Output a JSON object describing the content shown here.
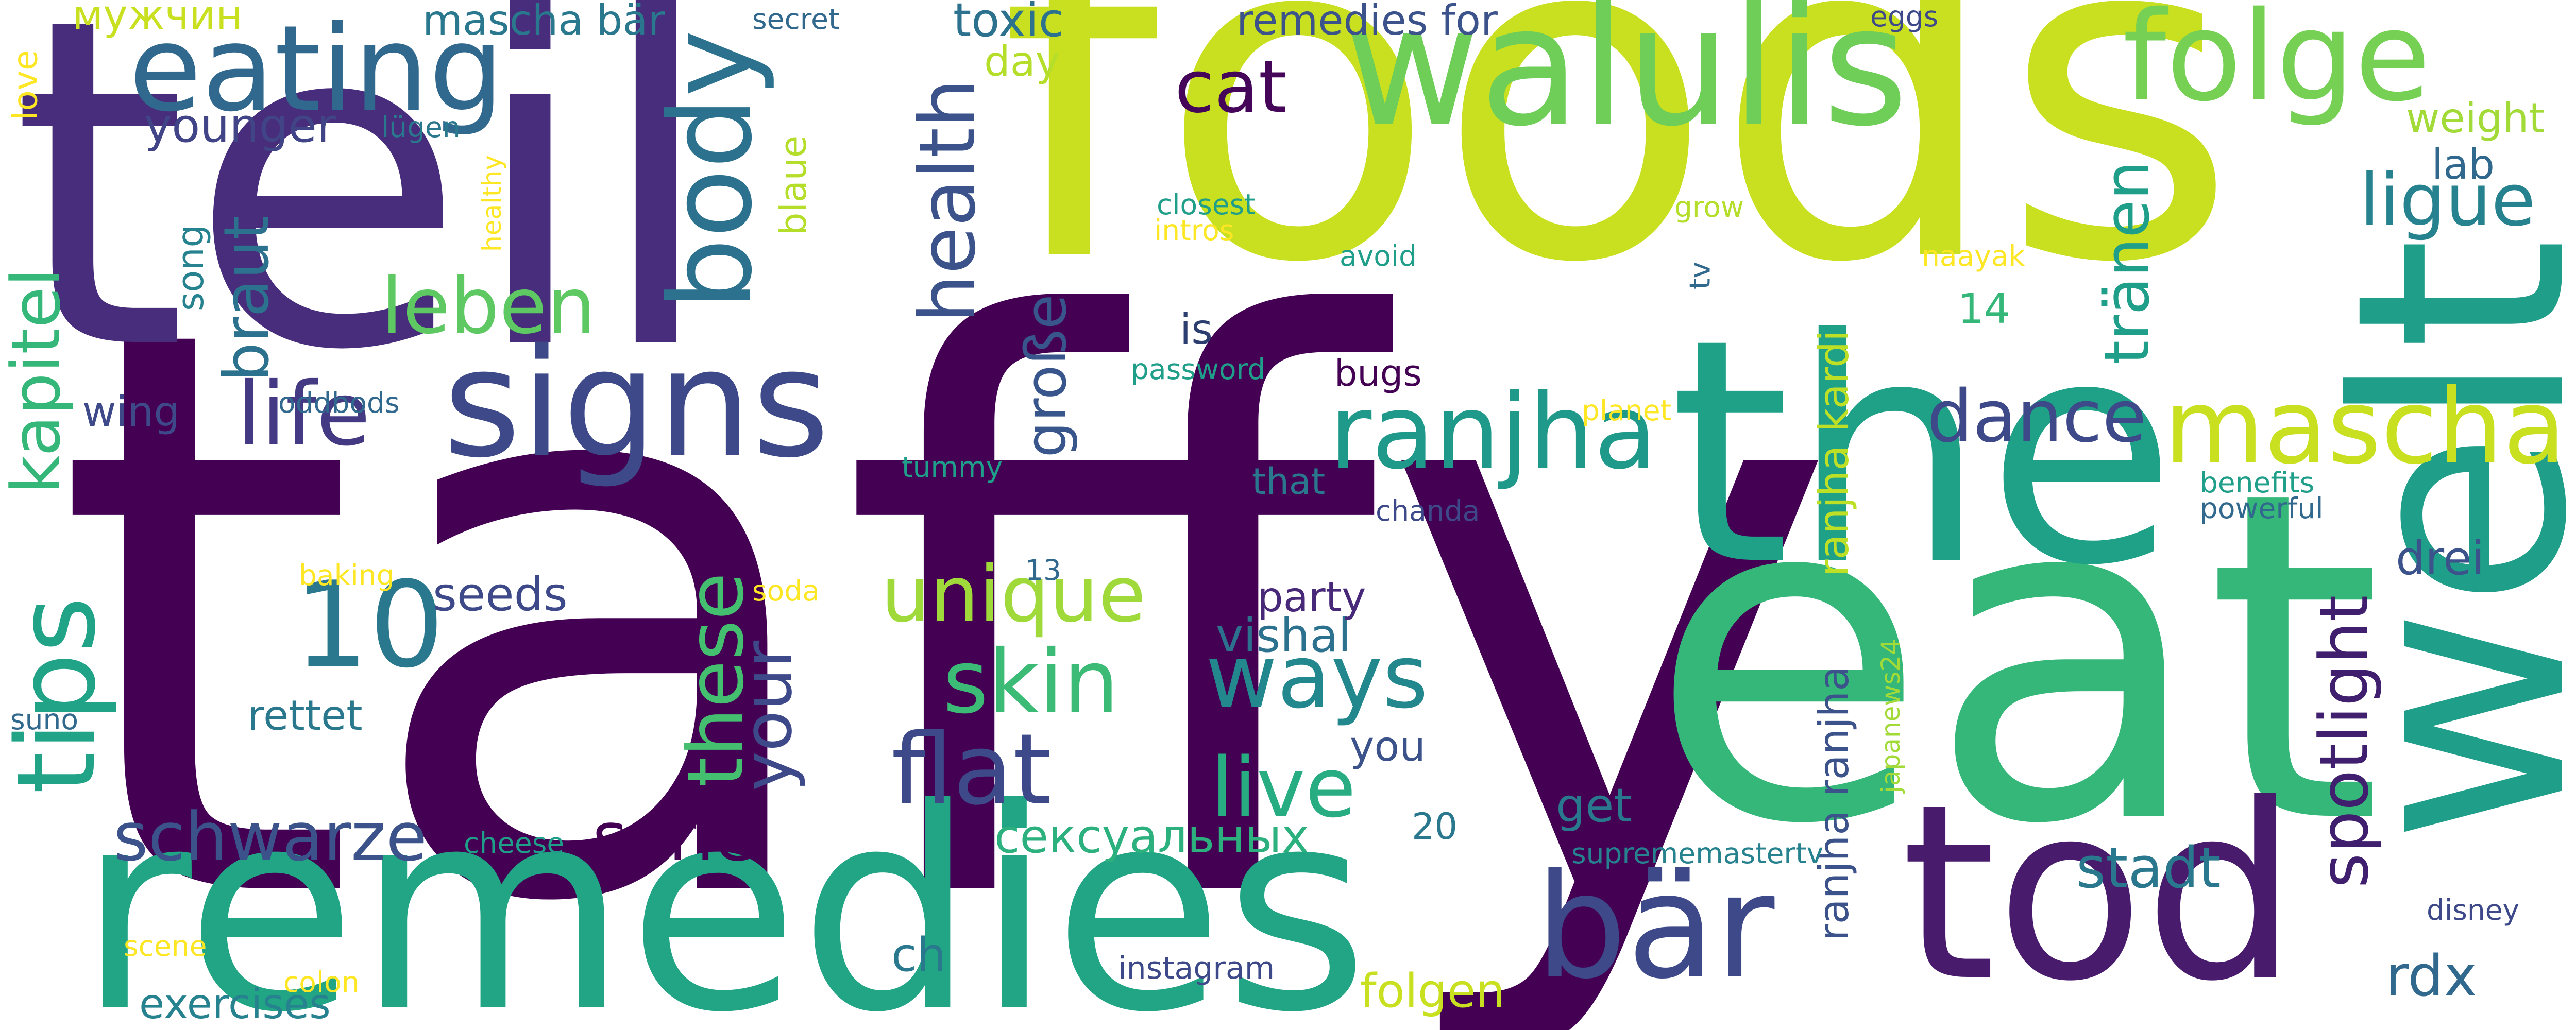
{
  "colors": {
    "background": "#ffffff",
    "palette": [
      "#440154",
      "#482878",
      "#3e4989",
      "#31688e",
      "#26828e",
      "#1f9e89",
      "#35b779",
      "#6ece58",
      "#b5de2b",
      "#c8e020",
      "#fde725"
    ]
  },
  "words": [
    {
      "text": "taffy",
      "color": "#440154"
    },
    {
      "text": "foods",
      "color": "#c8e020"
    },
    {
      "text": "teil",
      "color": "#472d7b"
    },
    {
      "text": "eat",
      "color": "#35b779"
    },
    {
      "text": "remedies",
      "color": "#21a585"
    },
    {
      "text": "the",
      "color": "#1fa188"
    },
    {
      "text": "welt",
      "color": "#1f9e89"
    },
    {
      "text": "tod",
      "color": "#481b6d"
    },
    {
      "text": "walulis",
      "color": "#6ece58"
    },
    {
      "text": "eating",
      "color": "#31688e"
    },
    {
      "text": "folge",
      "color": "#75d054"
    },
    {
      "text": "body",
      "color": "#2c728e"
    },
    {
      "text": "signs",
      "color": "#3e4989"
    },
    {
      "text": "health",
      "color": "#3b528b"
    },
    {
      "text": "bär",
      "color": "#3e4989"
    },
    {
      "text": "tips",
      "color": "#20a386"
    },
    {
      "text": "10",
      "color": "#2a788e"
    },
    {
      "text": "mascha",
      "color": "#c8e020"
    },
    {
      "text": "ranjha",
      "color": "#1f9a8a"
    },
    {
      "text": "flat",
      "color": "#3e4989"
    },
    {
      "text": "ways",
      "color": "#23888e"
    },
    {
      "text": "skin",
      "color": "#3bbb75"
    },
    {
      "text": "unique",
      "color": "#9fda3a"
    },
    {
      "text": "life",
      "color": "#443983"
    },
    {
      "text": "leben",
      "color": "#5ec962"
    },
    {
      "text": "kapitel",
      "color": "#35b779"
    },
    {
      "text": "these",
      "color": "#44bf70"
    },
    {
      "text": "live",
      "color": "#27ad81"
    },
    {
      "text": "spotlight",
      "color": "#3f1f6e"
    },
    {
      "text": "dance",
      "color": "#3e4989"
    },
    {
      "text": "schwarze",
      "color": "#3b528b"
    },
    {
      "text": "serie",
      "color": "#440154"
    },
    {
      "text": "your",
      "color": "#3e4989"
    },
    {
      "text": "ligue",
      "color": "#26828e"
    },
    {
      "text": "cat",
      "color": "#450559"
    },
    {
      "text": "braut",
      "color": "#2c728e"
    },
    {
      "text": "große",
      "color": "#39568c"
    },
    {
      "text": "tränen",
      "color": "#1f9e89"
    },
    {
      "text": "сексуальных",
      "color": "#2cb17e"
    },
    {
      "text": "stadt",
      "color": "#2a788e"
    },
    {
      "text": "ranjha kardi",
      "color": "#bddf26"
    },
    {
      "text": "ranjha ranjha",
      "color": "#3b528b"
    },
    {
      "text": "vishal",
      "color": "#2c728e"
    },
    {
      "text": "rdx",
      "color": "#31688e"
    },
    {
      "text": "folgen",
      "color": "#c8e020"
    },
    {
      "text": "drei",
      "color": "#3b528b"
    },
    {
      "text": "toxic",
      "color": "#2c728e"
    },
    {
      "text": "younger",
      "color": "#414487"
    },
    {
      "text": "mascha bär",
      "color": "#2a788e"
    },
    {
      "text": "remedies for",
      "color": "#3b528b"
    },
    {
      "text": "get",
      "color": "#2a788e"
    },
    {
      "text": "ch",
      "color": "#2a788e"
    },
    {
      "text": "party",
      "color": "#482878"
    },
    {
      "text": "seeds",
      "color": "#3e4989"
    },
    {
      "text": "rettet",
      "color": "#2a788e"
    },
    {
      "text": "мужчин",
      "color": "#c8e020"
    },
    {
      "text": "weight",
      "color": "#a2da37"
    },
    {
      "text": "lab",
      "color": "#31688e"
    },
    {
      "text": "day",
      "color": "#b5de2b"
    },
    {
      "text": "14",
      "color": "#35b779"
    },
    {
      "text": "is",
      "color": "#2c3e70"
    },
    {
      "text": "you",
      "color": "#3b528b"
    },
    {
      "text": "20",
      "color": "#2a788e"
    },
    {
      "text": "wing",
      "color": "#3e4989"
    },
    {
      "text": "song",
      "color": "#26828e"
    },
    {
      "text": "lügen",
      "color": "#2a788e"
    },
    {
      "text": "blaue",
      "color": "#b5de2b"
    },
    {
      "text": "bugs",
      "color": "#440154"
    },
    {
      "text": "that",
      "color": "#2a788e"
    },
    {
      "text": "exercises",
      "color": "#26828e"
    },
    {
      "text": "instagram",
      "color": "#3e4989"
    },
    {
      "text": "secret",
      "color": "#31688e"
    },
    {
      "text": "eggs",
      "color": "#3e4989"
    },
    {
      "text": "love",
      "color": "#fde725"
    },
    {
      "text": "healthy",
      "color": "#fde725"
    },
    {
      "text": "closest",
      "color": "#1f9e89"
    },
    {
      "text": "intros",
      "color": "#fde725"
    },
    {
      "text": "avoid",
      "color": "#1f9e89"
    },
    {
      "text": "grow",
      "color": "#b5de2b"
    },
    {
      "text": "naayak",
      "color": "#fde725"
    },
    {
      "text": "tv",
      "color": "#31688e"
    },
    {
      "text": "password",
      "color": "#1f9e89"
    },
    {
      "text": "oddbods",
      "color": "#31688e"
    },
    {
      "text": "planet",
      "color": "#fde725"
    },
    {
      "text": "tummy",
      "color": "#1f9e89"
    },
    {
      "text": "chanda",
      "color": "#3e4989"
    },
    {
      "text": "benefits",
      "color": "#1f9e89"
    },
    {
      "text": "powerful",
      "color": "#31688e"
    },
    {
      "text": "baking",
      "color": "#fde725"
    },
    {
      "text": "soda",
      "color": "#fde725"
    },
    {
      "text": "13",
      "color": "#31688e"
    },
    {
      "text": "suno",
      "color": "#31688e"
    },
    {
      "text": "cheese",
      "color": "#1f9e89"
    },
    {
      "text": "suprememastertv",
      "color": "#26828e"
    },
    {
      "text": "japanews24",
      "color": "#a2da37"
    },
    {
      "text": "disney",
      "color": "#3e4989"
    },
    {
      "text": "scene",
      "color": "#fde725"
    },
    {
      "text": "colon",
      "color": "#fde725"
    }
  ]
}
